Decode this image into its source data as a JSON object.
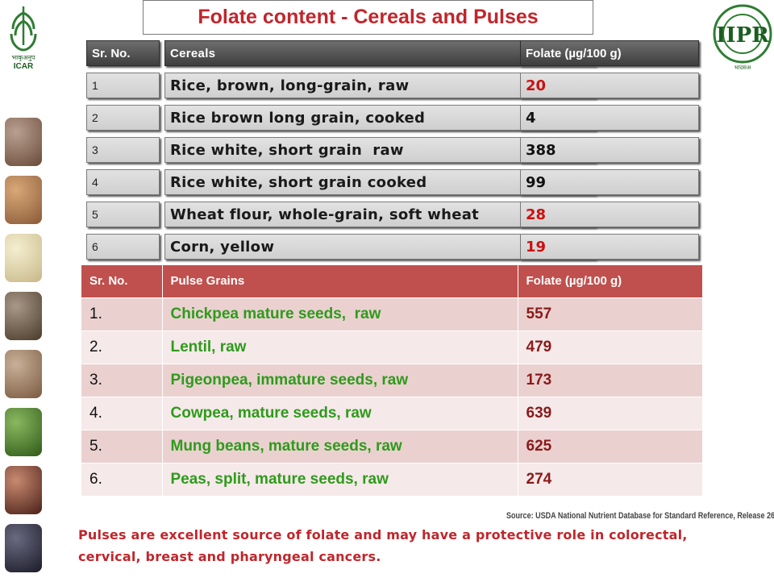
{
  "title": "Folate content - Cereals and Pulses",
  "logos": {
    "left_text": "भाकृअनुप\nICAR",
    "right_text": "INDIAN INSTITUTE OF PULSES RESEARCH · IIPR · भादसअ"
  },
  "colors": {
    "title": "#c0262b",
    "pulse_header": "#c0504d",
    "pulse_name": "#2e9b1b",
    "cereal_header": "#4a4a4a",
    "highlight_value": "#cc1010"
  },
  "cereals": {
    "headers": [
      "Sr. No.",
      "Cereals",
      "Folate (µg/100 g)"
    ],
    "rows": [
      {
        "no": "1",
        "name": "Rice, brown, long-grain, raw",
        "folate": "20",
        "red": true
      },
      {
        "no": "2",
        "name": "Rice brown long grain, cooked",
        "folate": "4",
        "red": false
      },
      {
        "no": "3",
        "name": "Rice white, short grain  raw",
        "folate": "388",
        "red": false
      },
      {
        "no": "4",
        "name": "Rice white, short grain cooked",
        "folate": "99",
        "red": false
      },
      {
        "no": "5",
        "name": "Wheat flour, whole-grain, soft wheat",
        "folate": "28",
        "red": true
      },
      {
        "no": "6",
        "name": "Corn, yellow",
        "folate": "19",
        "red": true
      }
    ]
  },
  "pulses": {
    "headers": [
      "Sr. No.",
      "Pulse Grains",
      "Folate (µg/100 g)"
    ],
    "rows": [
      {
        "no": "1.",
        "name": "Chickpea mature seeds,  raw",
        "folate": "557"
      },
      {
        "no": "2.",
        "name": "Lentil, raw",
        "folate": "479"
      },
      {
        "no": "3.",
        "name": "Pigeonpea, immature seeds, raw",
        "folate": "173"
      },
      {
        "no": "4.",
        "name": "Cowpea, mature seeds, raw",
        "folate": "639"
      },
      {
        "no": "5.",
        "name": "Mung beans, mature seeds, raw",
        "folate": "625"
      },
      {
        "no": "6.",
        "name": "Peas, split, mature seeds, raw",
        "folate": "274"
      }
    ]
  },
  "source": "Source: USDA National Nutrient Database for Standard Reference, Release 26",
  "note": "Pulses are excellent source of folate and may have a protective role in colorectal, cervical, breast and pharyngeal cancers.",
  "seed_colors": [
    "#8a6a5a",
    "#b07a50",
    "#e0d8b0",
    "#7a6a58",
    "#a88a70",
    "#4a7a30",
    "#7a3a28",
    "#3a3a4a"
  ]
}
